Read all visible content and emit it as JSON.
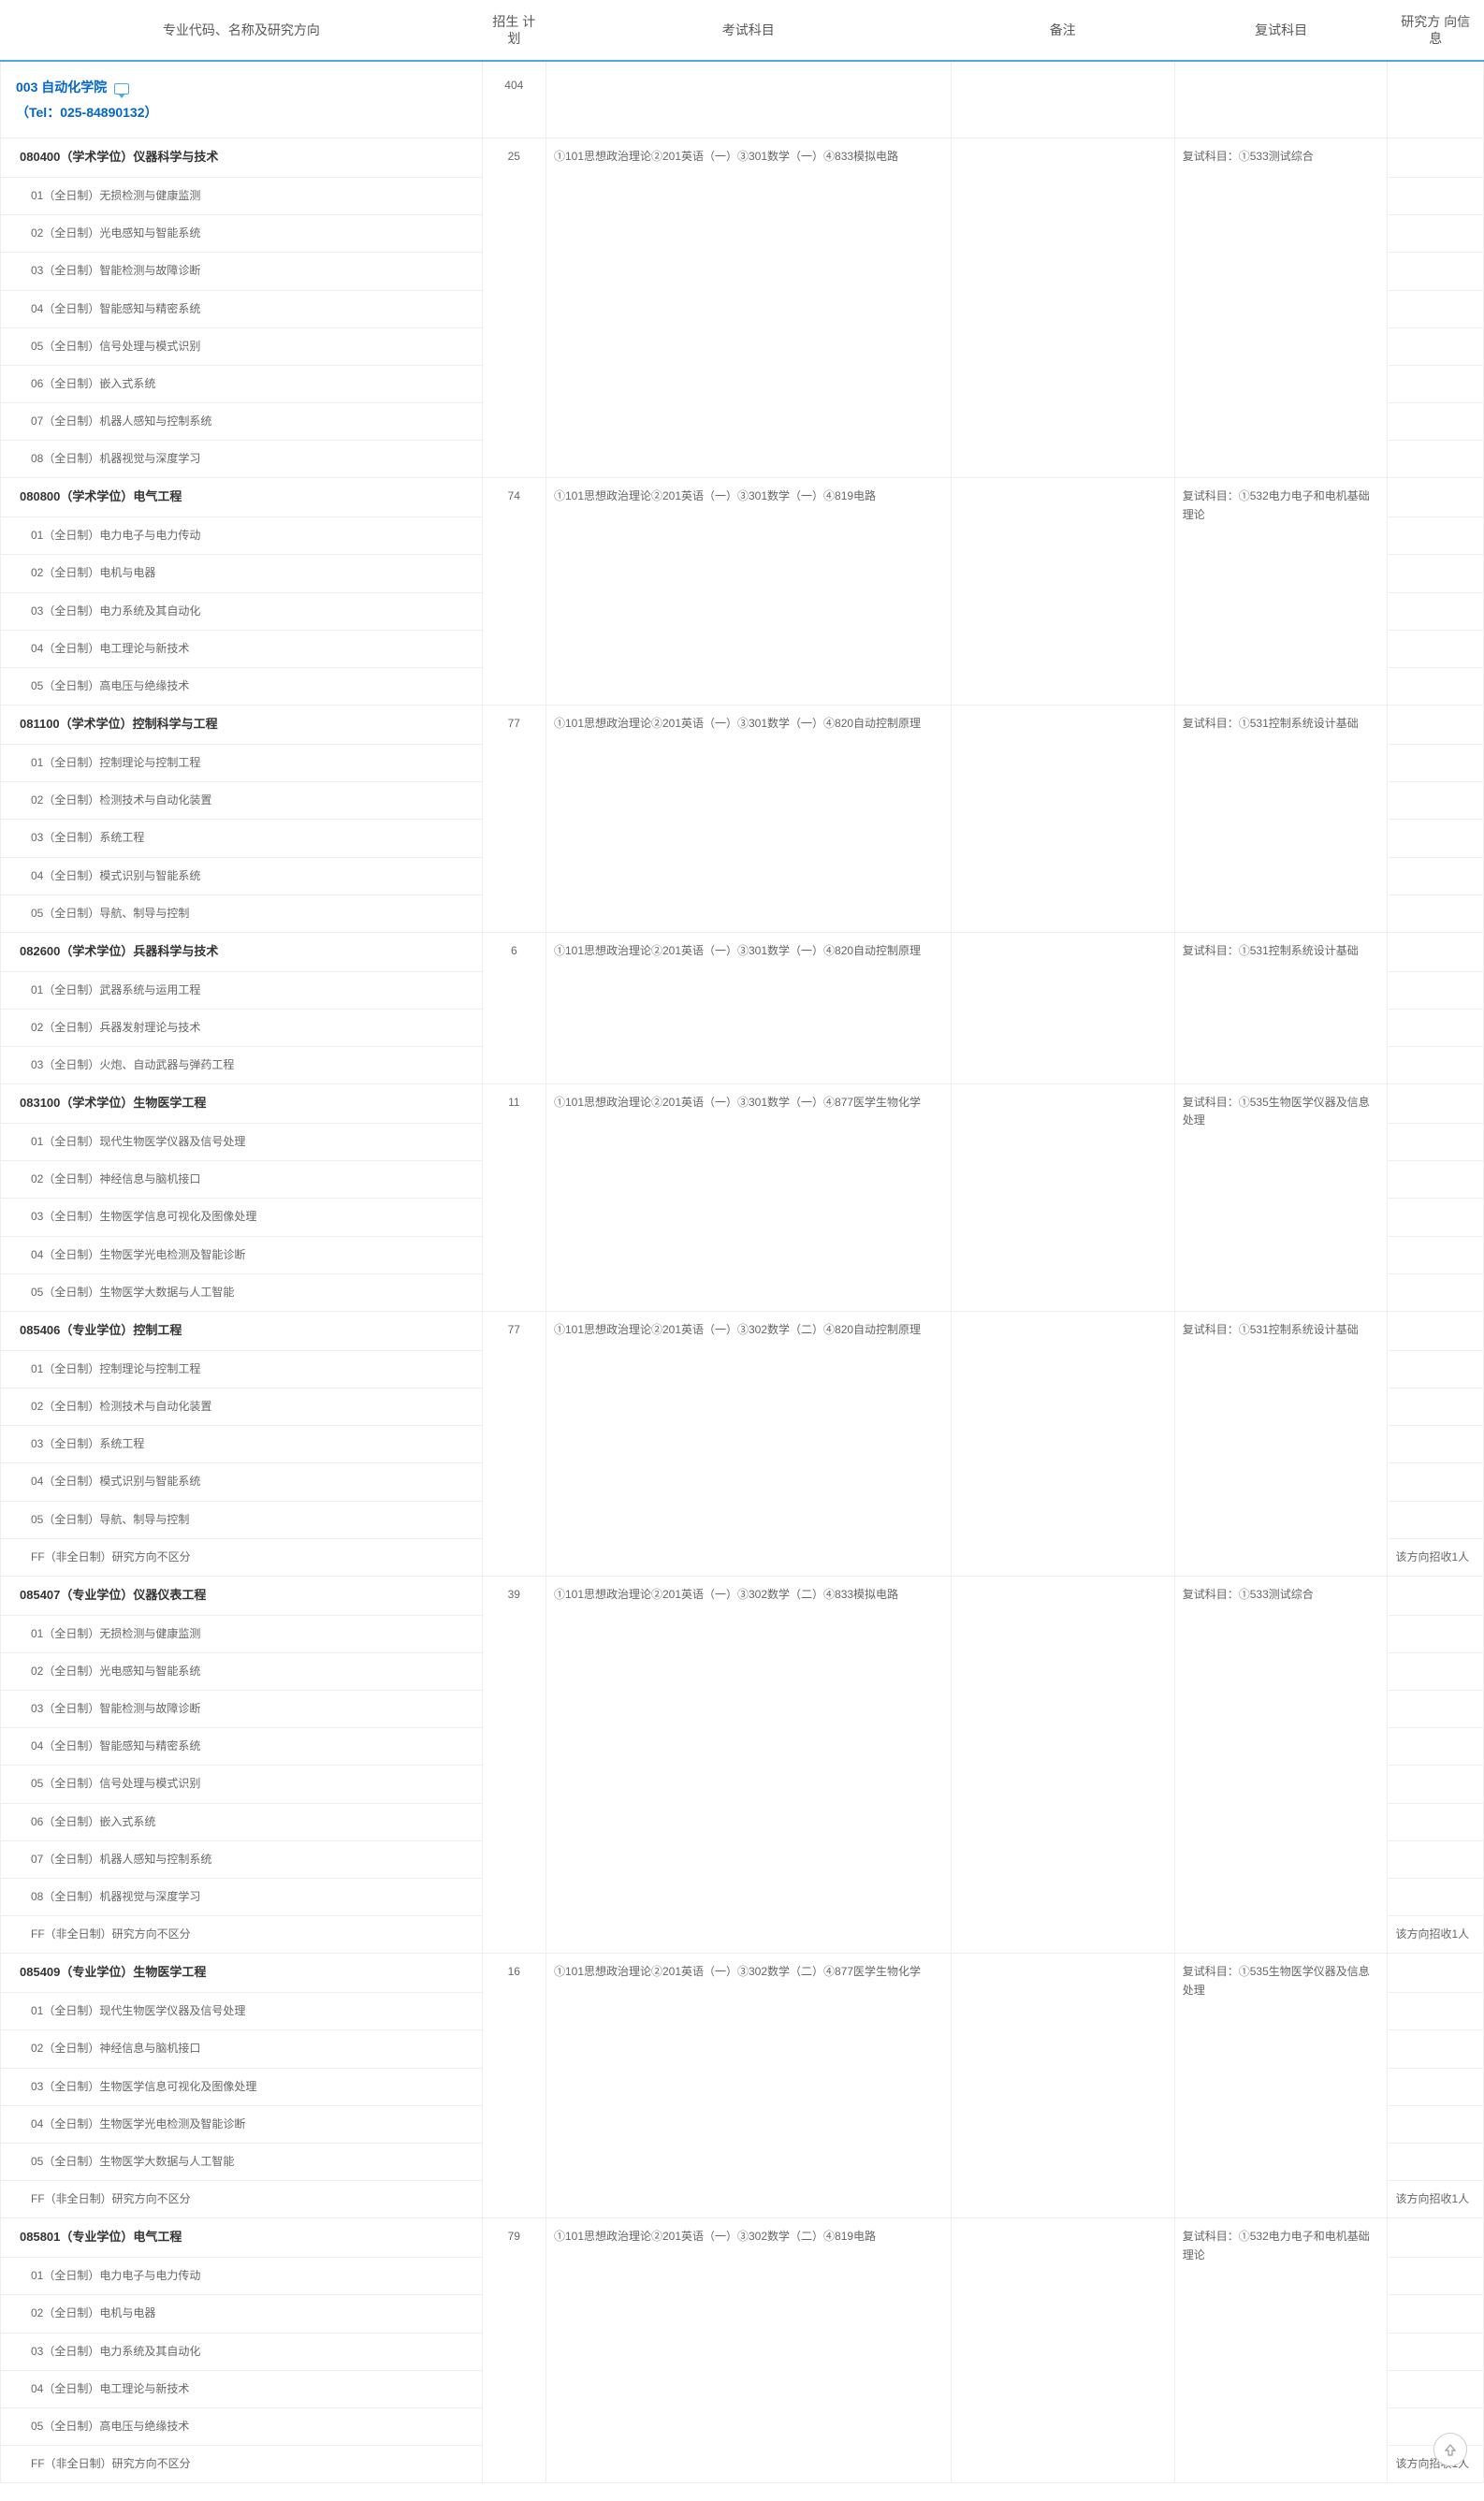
{
  "headers": {
    "name": "专业代码、名称及研究方向",
    "plan": "招生\n计划",
    "exam": "考试科目",
    "note": "备注",
    "retest": "复试科目",
    "info": "研究方\n向信息"
  },
  "dept": {
    "code": "003",
    "name": "自动化学院",
    "tel": "（Tel：025-84890132）",
    "plan": "404"
  },
  "majors": [
    {
      "code": "080400",
      "type": "（学术学位）",
      "name": "仪器科学与技术",
      "plan": "25",
      "exam": "①101思想政治理论②201英语（一）③301数学（一）④833模拟电路",
      "retest": "复试科目：①533测试综合",
      "dirs": [
        {
          "no": "01",
          "mode": "（全日制）",
          "name": "无损检测与健康监测"
        },
        {
          "no": "02",
          "mode": "（全日制）",
          "name": "光电感知与智能系统"
        },
        {
          "no": "03",
          "mode": "（全日制）",
          "name": "智能检测与故障诊断"
        },
        {
          "no": "04",
          "mode": "（全日制）",
          "name": "智能感知与精密系统"
        },
        {
          "no": "05",
          "mode": "（全日制）",
          "name": "信号处理与模式识别"
        },
        {
          "no": "06",
          "mode": "（全日制）",
          "name": "嵌入式系统"
        },
        {
          "no": "07",
          "mode": "（全日制）",
          "name": "机器人感知与控制系统"
        },
        {
          "no": "08",
          "mode": "（全日制）",
          "name": "机器视觉与深度学习"
        }
      ]
    },
    {
      "code": "080800",
      "type": "（学术学位）",
      "name": "电气工程",
      "plan": "74",
      "exam": "①101思想政治理论②201英语（一）③301数学（一）④819电路",
      "retest": "复试科目：①532电力电子和电机基础理论",
      "dirs": [
        {
          "no": "01",
          "mode": "（全日制）",
          "name": "电力电子与电力传动"
        },
        {
          "no": "02",
          "mode": "（全日制）",
          "name": "电机与电器"
        },
        {
          "no": "03",
          "mode": "（全日制）",
          "name": "电力系统及其自动化"
        },
        {
          "no": "04",
          "mode": "（全日制）",
          "name": "电工理论与新技术"
        },
        {
          "no": "05",
          "mode": "（全日制）",
          "name": "高电压与绝缘技术"
        }
      ]
    },
    {
      "code": "081100",
      "type": "（学术学位）",
      "name": "控制科学与工程",
      "plan": "77",
      "exam": "①101思想政治理论②201英语（一）③301数学（一）④820自动控制原理",
      "retest": "复试科目：①531控制系统设计基础",
      "dirs": [
        {
          "no": "01",
          "mode": "（全日制）",
          "name": "控制理论与控制工程"
        },
        {
          "no": "02",
          "mode": "（全日制）",
          "name": "检测技术与自动化装置"
        },
        {
          "no": "03",
          "mode": "（全日制）",
          "name": "系统工程"
        },
        {
          "no": "04",
          "mode": "（全日制）",
          "name": "模式识别与智能系统"
        },
        {
          "no": "05",
          "mode": "（全日制）",
          "name": "导航、制导与控制"
        }
      ]
    },
    {
      "code": "082600",
      "type": "（学术学位）",
      "name": "兵器科学与技术",
      "plan": "6",
      "exam": "①101思想政治理论②201英语（一）③301数学（一）④820自动控制原理",
      "retest": "复试科目：①531控制系统设计基础",
      "dirs": [
        {
          "no": "01",
          "mode": "（全日制）",
          "name": "武器系统与运用工程"
        },
        {
          "no": "02",
          "mode": "（全日制）",
          "name": "兵器发射理论与技术"
        },
        {
          "no": "03",
          "mode": "（全日制）",
          "name": "火炮、自动武器与弹药工程"
        }
      ]
    },
    {
      "code": "083100",
      "type": "（学术学位）",
      "name": "生物医学工程",
      "plan": "11",
      "exam": "①101思想政治理论②201英语（一）③301数学（一）④877医学生物化学",
      "retest": "复试科目：①535生物医学仪器及信息处理",
      "dirs": [
        {
          "no": "01",
          "mode": "（全日制）",
          "name": "现代生物医学仪器及信号处理"
        },
        {
          "no": "02",
          "mode": "（全日制）",
          "name": "神经信息与脑机接口"
        },
        {
          "no": "03",
          "mode": "（全日制）",
          "name": "生物医学信息可视化及图像处理"
        },
        {
          "no": "04",
          "mode": "（全日制）",
          "name": "生物医学光电检测及智能诊断"
        },
        {
          "no": "05",
          "mode": "（全日制）",
          "name": "生物医学大数据与人工智能"
        }
      ]
    },
    {
      "code": "085406",
      "type": "（专业学位）",
      "name": "控制工程",
      "plan": "77",
      "exam": "①101思想政治理论②201英语（一）③302数学（二）④820自动控制原理",
      "retest": "复试科目：①531控制系统设计基础",
      "dirs": [
        {
          "no": "01",
          "mode": "（全日制）",
          "name": "控制理论与控制工程"
        },
        {
          "no": "02",
          "mode": "（全日制）",
          "name": "检测技术与自动化装置"
        },
        {
          "no": "03",
          "mode": "（全日制）",
          "name": "系统工程"
        },
        {
          "no": "04",
          "mode": "（全日制）",
          "name": "模式识别与智能系统"
        },
        {
          "no": "05",
          "mode": "（全日制）",
          "name": "导航、制导与控制"
        },
        {
          "no": "FF",
          "mode": "（非全日制）",
          "name": "研究方向不区分",
          "info": "该方向招收1人"
        }
      ]
    },
    {
      "code": "085407",
      "type": "（专业学位）",
      "name": "仪器仪表工程",
      "plan": "39",
      "exam": "①101思想政治理论②201英语（一）③302数学（二）④833模拟电路",
      "retest": "复试科目：①533测试综合",
      "dirs": [
        {
          "no": "01",
          "mode": "（全日制）",
          "name": "无损检测与健康监测"
        },
        {
          "no": "02",
          "mode": "（全日制）",
          "name": "光电感知与智能系统"
        },
        {
          "no": "03",
          "mode": "（全日制）",
          "name": "智能检测与故障诊断"
        },
        {
          "no": "04",
          "mode": "（全日制）",
          "name": "智能感知与精密系统"
        },
        {
          "no": "05",
          "mode": "（全日制）",
          "name": "信号处理与模式识别"
        },
        {
          "no": "06",
          "mode": "（全日制）",
          "name": "嵌入式系统"
        },
        {
          "no": "07",
          "mode": "（全日制）",
          "name": "机器人感知与控制系统"
        },
        {
          "no": "08",
          "mode": "（全日制）",
          "name": "机器视觉与深度学习"
        },
        {
          "no": "FF",
          "mode": "（非全日制）",
          "name": "研究方向不区分",
          "info": "该方向招收1人"
        }
      ]
    },
    {
      "code": "085409",
      "type": "（专业学位）",
      "name": "生物医学工程",
      "plan": "16",
      "exam": "①101思想政治理论②201英语（一）③302数学（二）④877医学生物化学",
      "retest": "复试科目：①535生物医学仪器及信息处理",
      "dirs": [
        {
          "no": "01",
          "mode": "（全日制）",
          "name": "现代生物医学仪器及信号处理"
        },
        {
          "no": "02",
          "mode": "（全日制）",
          "name": "神经信息与脑机接口"
        },
        {
          "no": "03",
          "mode": "（全日制）",
          "name": "生物医学信息可视化及图像处理"
        },
        {
          "no": "04",
          "mode": "（全日制）",
          "name": "生物医学光电检测及智能诊断"
        },
        {
          "no": "05",
          "mode": "（全日制）",
          "name": "生物医学大数据与人工智能"
        },
        {
          "no": "FF",
          "mode": "（非全日制）",
          "name": "研究方向不区分",
          "info": "该方向招收1人"
        }
      ]
    },
    {
      "code": "085801",
      "type": "（专业学位）",
      "name": "电气工程",
      "plan": "79",
      "exam": "①101思想政治理论②201英语（一）③302数学（二）④819电路",
      "retest": "复试科目：①532电力电子和电机基础理论",
      "dirs": [
        {
          "no": "01",
          "mode": "（全日制）",
          "name": "电力电子与电力传动"
        },
        {
          "no": "02",
          "mode": "（全日制）",
          "name": "电机与电器"
        },
        {
          "no": "03",
          "mode": "（全日制）",
          "name": "电力系统及其自动化"
        },
        {
          "no": "04",
          "mode": "（全日制）",
          "name": "电工理论与新技术"
        },
        {
          "no": "05",
          "mode": "（全日制）",
          "name": "高电压与绝缘技术"
        },
        {
          "no": "FF",
          "mode": "（非全日制）",
          "name": "研究方向不区分",
          "info": "该方向招收1人"
        }
      ]
    }
  ]
}
